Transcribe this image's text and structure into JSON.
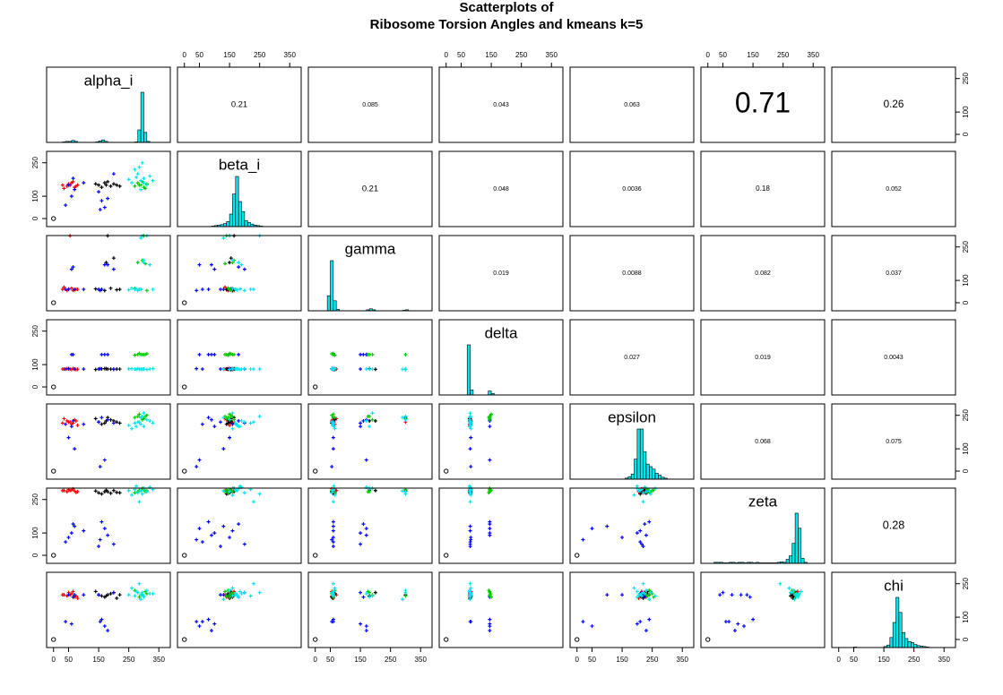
{
  "chart_data": {
    "type": "scatter-matrix",
    "title": [
      "Scatterplots of",
      "Ribosome Torsion Angles and kmeans k=5"
    ],
    "variables": [
      "alpha_i",
      "beta_i",
      "gamma",
      "delta",
      "epsilon",
      "zeta",
      "chi"
    ],
    "xlim": [
      -23,
      388
    ],
    "ylim": [
      -36,
      301
    ],
    "xticks": [
      0,
      50,
      150,
      250,
      350
    ],
    "yticks": [
      0,
      100,
      250
    ],
    "correlations": [
      [
        0.21,
        0.085,
        0.043,
        0.063,
        0.71,
        0.26
      ],
      [
        0.21,
        0.048,
        0.0036,
        0.18,
        0.052
      ],
      [
        0.019,
        0.0088,
        0.082,
        0.037
      ],
      [
        0.027,
        0.019,
        0.0043
      ],
      [
        0.068,
        0.075
      ],
      [
        0.28
      ]
    ],
    "hist_color": "#00e5ee",
    "hist_ylim": [
      0,
      150
    ],
    "hist_bins": [
      0,
      10,
      20,
      30,
      40,
      50,
      60,
      70,
      80,
      90,
      100,
      110,
      120,
      130,
      140,
      150,
      160,
      170,
      180,
      190,
      200,
      210,
      220,
      230,
      240,
      250,
      260,
      270,
      280,
      290,
      300,
      310,
      320,
      330,
      340,
      350,
      360
    ],
    "hist_counts": [
      [
        0,
        0,
        0,
        1,
        2,
        2,
        4,
        2,
        0,
        0,
        0,
        0,
        0,
        0,
        1,
        3,
        5,
        2,
        0,
        0,
        0,
        0,
        0,
        0,
        0,
        0,
        0,
        1,
        25,
        100,
        20,
        2,
        0,
        0,
        0,
        0
      ],
      [
        0,
        0,
        0,
        0,
        0,
        0,
        0,
        0,
        0,
        1,
        2,
        3,
        4,
        6,
        10,
        25,
        65,
        100,
        50,
        30,
        12,
        8,
        5,
        3,
        2,
        1,
        0,
        0,
        0,
        0,
        0,
        0,
        0,
        0,
        0,
        0
      ],
      [
        0,
        0,
        0,
        0,
        30,
        100,
        20,
        3,
        0,
        0,
        0,
        0,
        0,
        0,
        0,
        0,
        0,
        2,
        4,
        2,
        0,
        0,
        0,
        0,
        0,
        0,
        0,
        0,
        0,
        1,
        2,
        0,
        0,
        0,
        0,
        0
      ],
      [
        0,
        0,
        0,
        0,
        0,
        0,
        0,
        100,
        10,
        0,
        0,
        0,
        0,
        0,
        8,
        3,
        0,
        0,
        0,
        0,
        0,
        0,
        0,
        0,
        0,
        0,
        0,
        0,
        0,
        0,
        0,
        0,
        0,
        0,
        0,
        0
      ],
      [
        0,
        0,
        0,
        0,
        0,
        0,
        0,
        0,
        0,
        0,
        0,
        0,
        0,
        0,
        0,
        0,
        2,
        5,
        10,
        40,
        100,
        100,
        55,
        30,
        25,
        20,
        12,
        8,
        4,
        2,
        0,
        0,
        0,
        0,
        0,
        0
      ],
      [
        0,
        0,
        2,
        2,
        2,
        1,
        1,
        2,
        2,
        1,
        2,
        2,
        1,
        2,
        2,
        1,
        2,
        1,
        1,
        1,
        1,
        1,
        1,
        2,
        3,
        2,
        8,
        15,
        40,
        100,
        70,
        10,
        2,
        0,
        0,
        0
      ],
      [
        0,
        0,
        0,
        0,
        0,
        1,
        0,
        0,
        0,
        0,
        0,
        0,
        0,
        0,
        0,
        2,
        5,
        20,
        50,
        100,
        70,
        30,
        18,
        12,
        10,
        6,
        4,
        3,
        2,
        1,
        0,
        0,
        0,
        0,
        0,
        0
      ]
    ],
    "series": [
      {
        "color": "#ff0000",
        "marker": "plus",
        "points": [
          [
            30,
            150,
            60,
            80,
            215,
            290,
            200
          ],
          [
            45,
            145,
            55,
            82,
            225,
            285,
            195
          ],
          [
            60,
            160,
            65,
            78,
            210,
            292,
            205
          ],
          [
            70,
            140,
            58,
            80,
            230,
            288,
            190
          ],
          [
            50,
            155,
            62,
            81,
            220,
            295,
            210
          ],
          [
            80,
            150,
            60,
            79,
            205,
            285,
            185
          ],
          [
            35,
            135,
            70,
            80,
            235,
            290,
            200
          ],
          [
            65,
            165,
            55,
            82,
            215,
            298,
            215
          ],
          [
            55,
            150,
            300,
            80,
            220,
            290,
            200
          ],
          [
            75,
            145,
            60,
            78,
            225,
            282,
            195
          ]
        ]
      },
      {
        "color": "#000000",
        "marker": "plus",
        "points": [
          [
            150,
            150,
            60,
            80,
            220,
            280,
            200
          ],
          [
            170,
            160,
            55,
            82,
            215,
            285,
            190
          ],
          [
            190,
            145,
            65,
            80,
            230,
            278,
            205
          ],
          [
            200,
            155,
            200,
            79,
            225,
            290,
            210
          ],
          [
            160,
            140,
            60,
            81,
            210,
            275,
            195
          ],
          [
            180,
            165,
            300,
            80,
            240,
            285,
            200
          ],
          [
            210,
            150,
            58,
            80,
            220,
            282,
            185
          ],
          [
            140,
            155,
            62,
            78,
            235,
            288,
            215
          ],
          [
            220,
            145,
            60,
            80,
            215,
            280,
            200
          ],
          [
            175,
            150,
            180,
            82,
            225,
            292,
            195
          ]
        ]
      },
      {
        "color": "#0000ff",
        "marker": "plus",
        "points": [
          [
            40,
            60,
            60,
            80,
            210,
            60,
            80
          ],
          [
            60,
            100,
            150,
            145,
            200,
            100,
            70
          ],
          [
            150,
            120,
            60,
            80,
            220,
            40,
            200
          ],
          [
            170,
            50,
            170,
            145,
            50,
            120,
            60
          ],
          [
            50,
            150,
            60,
            82,
            150,
            80,
            200
          ],
          [
            160,
            80,
            60,
            145,
            240,
            150,
            90
          ],
          [
            200,
            200,
            150,
            80,
            215,
            50,
            210
          ],
          [
            70,
            130,
            60,
            80,
            100,
            130,
            200
          ],
          [
            180,
            90,
            170,
            145,
            230,
            90,
            40
          ],
          [
            100,
            160,
            60,
            80,
            210,
            110,
            200
          ],
          [
            155,
            40,
            55,
            82,
            20,
            70,
            80
          ],
          [
            65,
            180,
            160,
            145,
            225,
            140,
            190
          ]
        ]
      },
      {
        "color": "#00cc00",
        "marker": "plus",
        "points": [
          [
            290,
            150,
            60,
            145,
            240,
            290,
            200
          ],
          [
            280,
            160,
            180,
            145,
            245,
            285,
            210
          ],
          [
            300,
            140,
            300,
            145,
            235,
            295,
            195
          ],
          [
            310,
            155,
            55,
            148,
            250,
            290,
            205
          ],
          [
            270,
            145,
            65,
            142,
            240,
            280,
            220
          ],
          [
            295,
            165,
            190,
            145,
            230,
            300,
            200
          ],
          [
            285,
            150,
            60,
            150,
            255,
            292,
            190
          ],
          [
            305,
            135,
            175,
            145,
            245,
            285,
            215
          ]
        ]
      },
      {
        "color": "#00e5ee",
        "marker": "plus",
        "points": [
          [
            290,
            170,
            60,
            80,
            210,
            290,
            200
          ],
          [
            280,
            200,
            55,
            82,
            220,
            280,
            210
          ],
          [
            300,
            180,
            180,
            80,
            200,
            300,
            190
          ],
          [
            310,
            150,
            300,
            78,
            230,
            285,
            220
          ],
          [
            270,
            220,
            60,
            80,
            215,
            295,
            195
          ],
          [
            260,
            160,
            65,
            82,
            190,
            270,
            230
          ],
          [
            320,
            190,
            170,
            80,
            225,
            305,
            205
          ],
          [
            290,
            130,
            290,
            79,
            240,
            288,
            180
          ],
          [
            250,
            175,
            58,
            81,
            205,
            290,
            200
          ],
          [
            285,
            230,
            60,
            80,
            220,
            240,
            250
          ],
          [
            300,
            160,
            190,
            80,
            260,
            300,
            195
          ],
          [
            275,
            185,
            62,
            78,
            200,
            310,
            215
          ],
          [
            330,
            170,
            60,
            82,
            215,
            295,
            205
          ],
          [
            295,
            250,
            300,
            80,
            245,
            275,
            210
          ]
        ]
      },
      {
        "color": "#000000",
        "marker": "circle",
        "points": [
          [
            0,
            0,
            0,
            0,
            0,
            0,
            0
          ]
        ]
      }
    ]
  }
}
